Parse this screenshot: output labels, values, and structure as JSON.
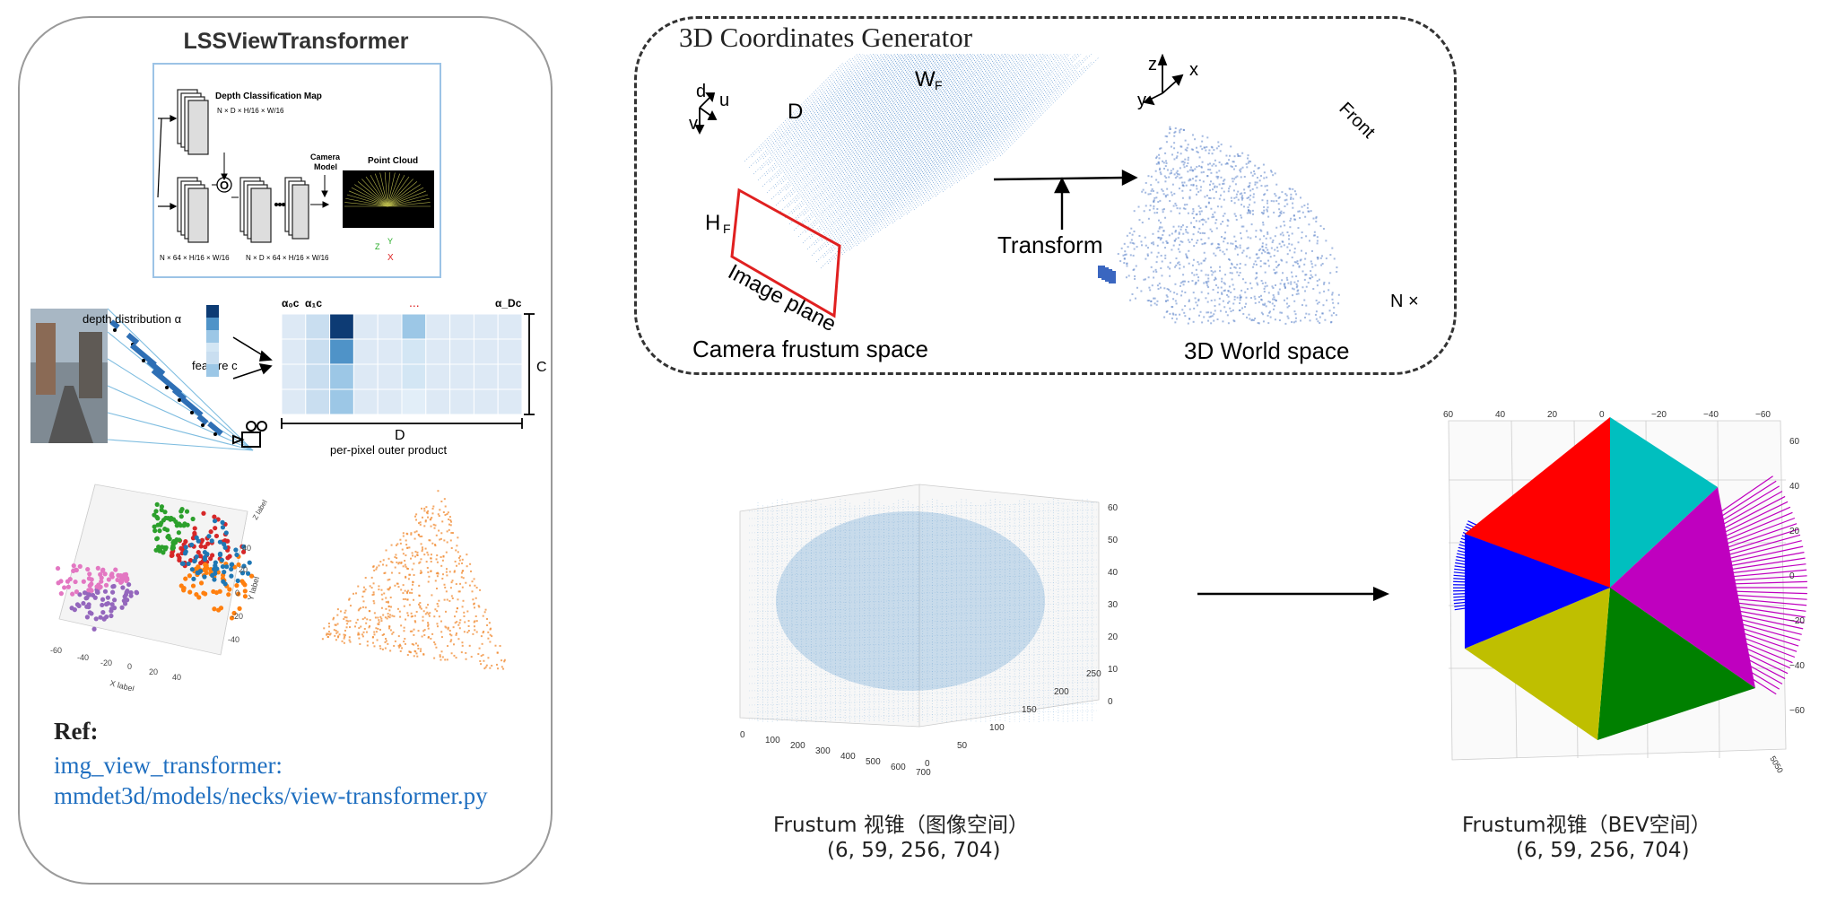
{
  "left_panel": {
    "title": "LSSViewTransformer",
    "depth_class_map": "Depth Classification Map",
    "depth_dims": "N × D × H/16 × W/16",
    "camera_model": "Camera\nModel",
    "point_cloud": "Point Cloud",
    "feat_dims1": "N × 64 × H/16 × W/16",
    "feat_dims2": "N × D × 64 × H/16 × W/16",
    "outer_op": "O",
    "axes_z": "Z",
    "axes_y": "Y",
    "axes_x": "X",
    "depth_distribution": "depth distribution α",
    "feature_c": "feature c",
    "col_alpha0": "α₀c",
    "col_alpha1": "α₁c",
    "col_dots": "...",
    "col_alphaD": "α_Dc",
    "label_C": "C",
    "label_D": "D",
    "outer_product": "per-pixel outer product",
    "plot_xlabel": "X label",
    "plot_ylabel": "Y label",
    "plot_zlabel": "Z label",
    "plot_xticks": [
      "-60",
      "-40",
      "-20",
      "0",
      "20",
      "40"
    ],
    "plot_yticks": [
      "40",
      "20",
      "0",
      "-20",
      "-40"
    ],
    "ref_heading": "Ref:",
    "ref_line1": "img_view_transformer:",
    "ref_line2": "mmdet3d/models/necks/view-transformer.py"
  },
  "coords_panel": {
    "title": "3D Coordinates Generator",
    "axis_d": "d",
    "axis_u": "u",
    "axis_v": "v",
    "label_D": "D",
    "label_WF": "W",
    "label_WF_sub": "F",
    "label_HF": "H",
    "label_HF_sub": "F",
    "image_plane": "Image plane",
    "camera_frustum": "Camera frustum space",
    "transform": "Transform",
    "axis_z": "z",
    "axis_y": "y",
    "axis_x": "x",
    "front": "Front",
    "n_times": "N ×",
    "world_space": "3D World space"
  },
  "frustum_plot": {
    "caption1": "Frustum 视锥（图像空间）",
    "caption2": "(6, 59, 256, 704)",
    "xticks": [
      "0",
      "100",
      "200",
      "300",
      "400",
      "500",
      "600",
      "700"
    ],
    "yticks": [
      "0",
      "50",
      "100",
      "150",
      "200",
      "250"
    ],
    "zticks": [
      "0",
      "10",
      "20",
      "30",
      "40",
      "50",
      "60"
    ]
  },
  "bev_plot": {
    "caption1": "Frustum视锥（BEV空间）",
    "caption2": "(6, 59, 256, 704)",
    "top_ticks": [
      "60",
      "40",
      "20",
      "0",
      "−20",
      "−40",
      "−60"
    ],
    "right_ticks": [
      "60",
      "40",
      "20",
      "0",
      "−20",
      "−40",
      "−60"
    ],
    "corner_ticks": "5050"
  },
  "colors": {
    "red": "#ff0000",
    "cyan": "#00bfbf",
    "magenta": "#bf00bf",
    "green": "#008000",
    "yellow": "#bfbf00",
    "blue": "#0000ff",
    "frustum_blue": "#3a86c8",
    "orange": "#f08a30",
    "link": "#1f6fc0"
  }
}
